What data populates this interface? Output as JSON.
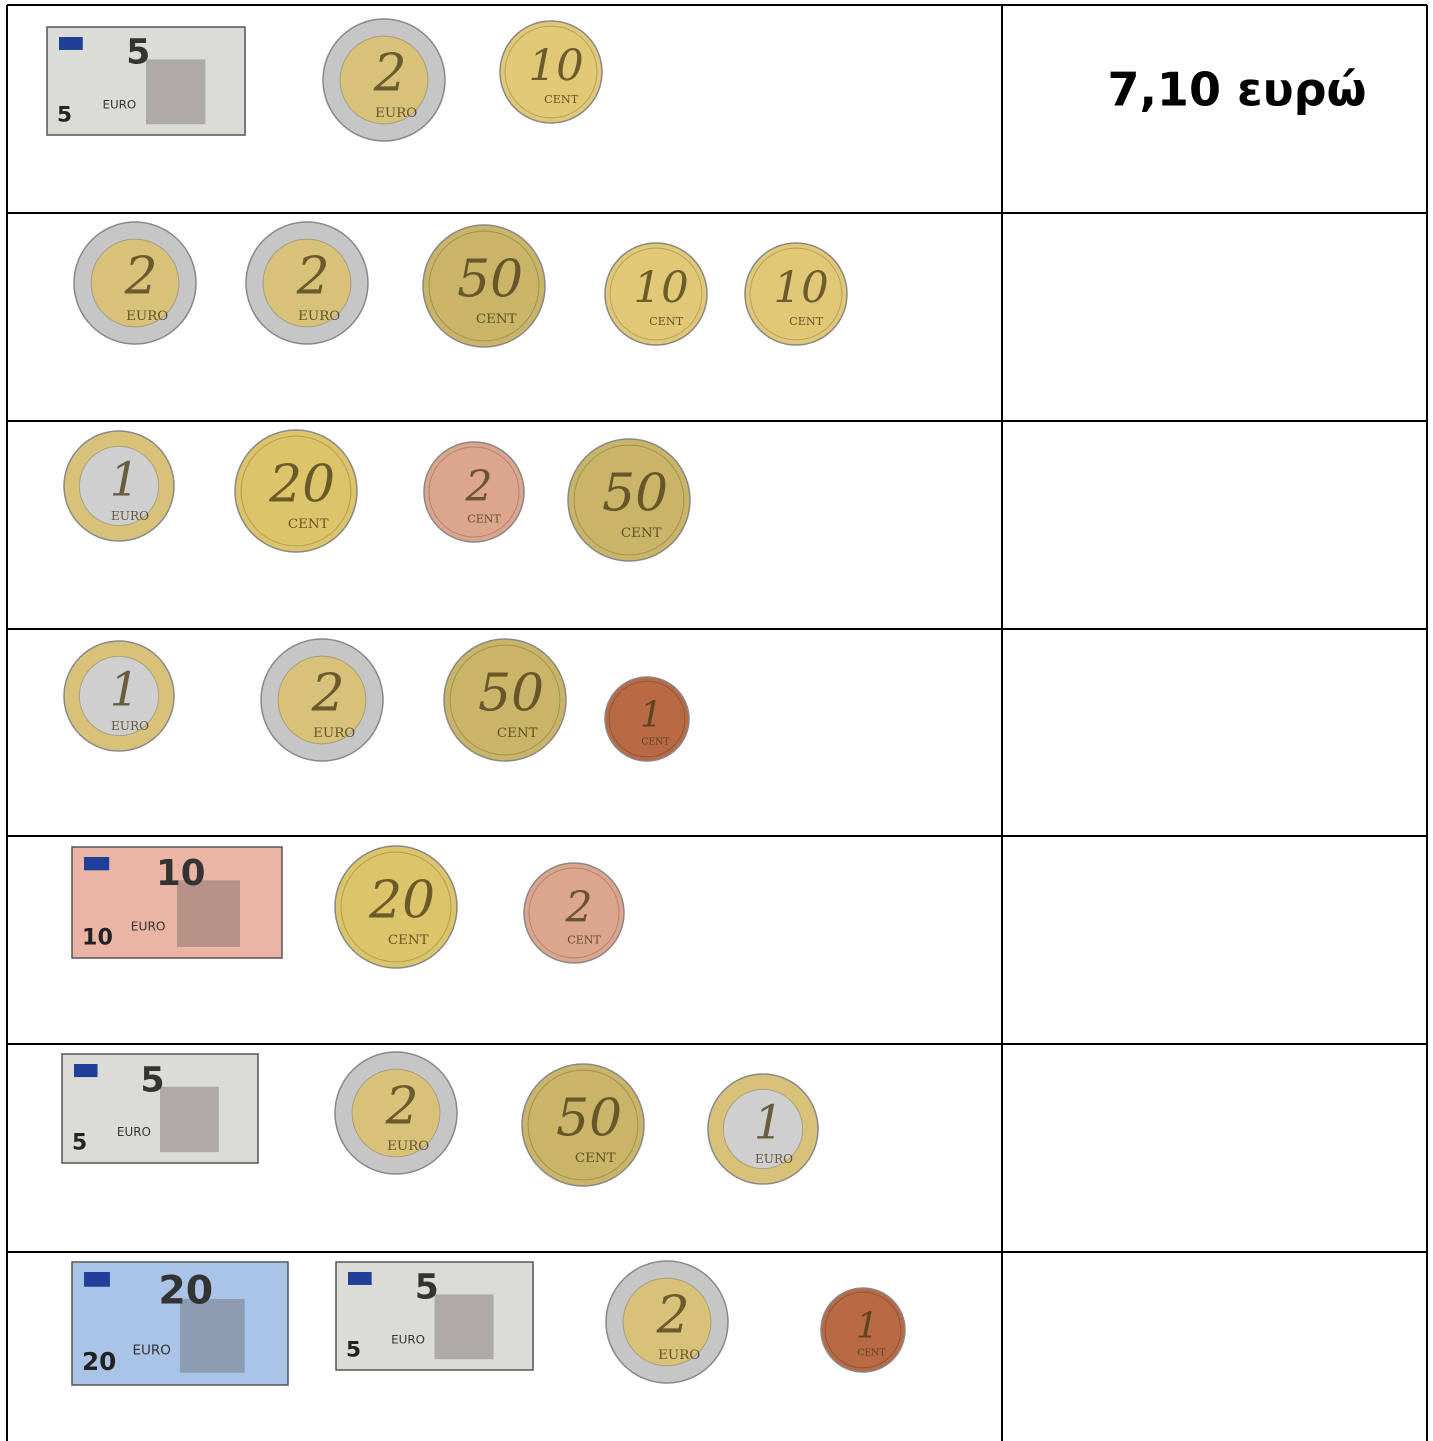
{
  "rows": [
    {
      "items": [
        {
          "shape": "note",
          "label": "5",
          "unit": "EURO",
          "color": "#dcdcd6"
        },
        {
          "shape": "coin",
          "label": "2",
          "unit": "EURO",
          "color": "#d8c27a",
          "ring_color": "#c6c6c6"
        },
        {
          "shape": "coin",
          "label": "10",
          "unit": "CENT",
          "color": "#e0c877"
        }
      ],
      "answer": "7,10 ευρώ"
    },
    {
      "items": [
        {
          "shape": "coin",
          "label": "2",
          "unit": "EURO",
          "color": "#d8c27a",
          "ring_color": "#c6c6c6"
        },
        {
          "shape": "coin",
          "label": "2",
          "unit": "EURO",
          "color": "#d8c27a",
          "ring_color": "#c6c6c6"
        },
        {
          "shape": "coin",
          "label": "50",
          "unit": "CENT",
          "color": "#c9b468"
        },
        {
          "shape": "coin",
          "label": "10",
          "unit": "CENT",
          "color": "#e0c877"
        },
        {
          "shape": "coin",
          "label": "10",
          "unit": "CENT",
          "color": "#e0c877"
        }
      ]
    },
    {
      "items": [
        {
          "shape": "coin",
          "label": "1",
          "unit": "EURO",
          "color": "#cfcfcf",
          "ring_color": "#d8c27a"
        },
        {
          "shape": "coin",
          "label": "20",
          "unit": "CENT",
          "color": "#dcc46a"
        },
        {
          "shape": "coin",
          "label": "2",
          "unit": "CENT",
          "color": "#dca58d"
        },
        {
          "shape": "coin",
          "label": "50",
          "unit": "CENT",
          "color": "#c9b468"
        }
      ]
    },
    {
      "items": [
        {
          "shape": "coin",
          "label": "1",
          "unit": "EURO",
          "color": "#cfcfcf",
          "ring_color": "#d8c27a"
        },
        {
          "shape": "coin",
          "label": "2",
          "unit": "EURO",
          "color": "#d8c27a",
          "ring_color": "#c6c6c6"
        },
        {
          "shape": "coin",
          "label": "50",
          "unit": "CENT",
          "color": "#c9b468"
        },
        {
          "shape": "coin",
          "label": "1",
          "unit": "CENT",
          "color": "#b86a45"
        }
      ]
    },
    {
      "items": [
        {
          "shape": "note",
          "label": "10",
          "unit": "EURO",
          "color": "#eab5a4"
        },
        {
          "shape": "coin",
          "label": "20",
          "unit": "CENT",
          "color": "#dcc46a"
        },
        {
          "shape": "coin",
          "label": "2",
          "unit": "CENT",
          "color": "#dca58d"
        }
      ]
    },
    {
      "items": [
        {
          "shape": "note",
          "label": "5",
          "unit": "EURO",
          "color": "#dcdcd6"
        },
        {
          "shape": "coin",
          "label": "2",
          "unit": "EURO",
          "color": "#d8c27a",
          "ring_color": "#c6c6c6"
        },
        {
          "shape": "coin",
          "label": "50",
          "unit": "CENT",
          "color": "#c9b468"
        },
        {
          "shape": "coin",
          "label": "1",
          "unit": "EURO",
          "color": "#cfcfcf",
          "ring_color": "#d8c27a"
        }
      ]
    },
    {
      "items": [
        {
          "shape": "note",
          "label": "20",
          "unit": "EURO",
          "color": "#aac4e8"
        },
        {
          "shape": "note",
          "label": "5",
          "unit": "EURO",
          "color": "#dcdcd6"
        },
        {
          "shape": "coin",
          "label": "2",
          "unit": "EURO",
          "color": "#d8c27a",
          "ring_color": "#c6c6c6"
        },
        {
          "shape": "coin",
          "label": "1",
          "unit": "CENT",
          "color": "#b86a45"
        }
      ]
    }
  ]
}
